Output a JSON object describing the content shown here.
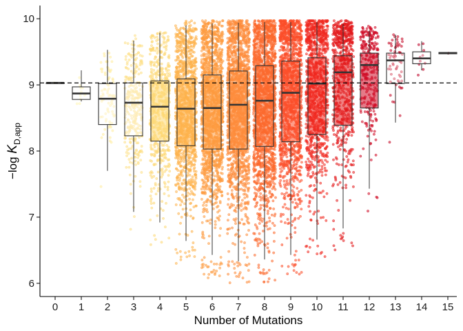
{
  "chart_data": {
    "type": "box",
    "xlabel": "Number of Mutations",
    "ylabel": {
      "prefix": "−log ",
      "symbol": "K",
      "subscript": "D,app"
    },
    "x_categories": [
      "0",
      "1",
      "2",
      "3",
      "4",
      "5",
      "6",
      "7",
      "8",
      "9",
      "10",
      "11",
      "12",
      "13",
      "14",
      "15"
    ],
    "y_ticks": [
      "6",
      "7",
      "8",
      "9",
      "10"
    ],
    "ylim": [
      5.8,
      10.2
    ],
    "reference_line": {
      "y": 9.03,
      "style": "dashed"
    },
    "grid": false,
    "legend": "none",
    "boxes": [
      {
        "x": 0,
        "min": 9.02,
        "q1": 9.02,
        "median": 9.03,
        "q3": 9.03,
        "max": 9.04,
        "color": "#ffffcc",
        "n": 1,
        "spread": 0.0
      },
      {
        "x": 1,
        "min": 8.75,
        "q1": 8.78,
        "median": 8.87,
        "q3": 8.97,
        "max": 9.22,
        "color": "#fff5b8",
        "n": 12,
        "spread": 0.3
      },
      {
        "x": 2,
        "min": 7.7,
        "q1": 8.4,
        "median": 8.79,
        "q3": 9.02,
        "max": 9.53,
        "color": "#ffeda0",
        "n": 80,
        "spread": 0.55
      },
      {
        "x": 3,
        "min": 7.08,
        "q1": 8.23,
        "median": 8.73,
        "q3": 9.03,
        "max": 9.67,
        "color": "#fee087",
        "n": 300,
        "spread": 0.7
      },
      {
        "x": 4,
        "min": 6.92,
        "q1": 8.15,
        "median": 8.67,
        "q3": 9.06,
        "max": 9.79,
        "color": "#fed976",
        "n": 600,
        "spread": 0.8
      },
      {
        "x": 5,
        "min": 6.64,
        "q1": 8.08,
        "median": 8.64,
        "q3": 9.09,
        "max": 9.9,
        "color": "#feb24c",
        "n": 1200,
        "spread": 0.85
      },
      {
        "x": 6,
        "min": 6.43,
        "q1": 8.03,
        "median": 8.65,
        "q3": 9.15,
        "max": 9.93,
        "color": "#fd9b40",
        "n": 1600,
        "spread": 0.88
      },
      {
        "x": 7,
        "min": 6.33,
        "q1": 8.03,
        "median": 8.7,
        "q3": 9.21,
        "max": 9.94,
        "color": "#fd8d3c",
        "n": 1800,
        "spread": 0.9
      },
      {
        "x": 8,
        "min": 6.36,
        "q1": 8.07,
        "median": 8.76,
        "q3": 9.29,
        "max": 9.95,
        "color": "#fc6a2e",
        "n": 1800,
        "spread": 0.9
      },
      {
        "x": 9,
        "min": 6.43,
        "q1": 8.14,
        "median": 8.88,
        "q3": 9.36,
        "max": 9.95,
        "color": "#fc4e2a",
        "n": 1500,
        "spread": 0.9
      },
      {
        "x": 10,
        "min": 6.66,
        "q1": 8.25,
        "median": 9.02,
        "q3": 9.41,
        "max": 9.95,
        "color": "#f0281f",
        "n": 1100,
        "spread": 0.9
      },
      {
        "x": 11,
        "min": 6.83,
        "q1": 8.39,
        "median": 9.19,
        "q3": 9.44,
        "max": 9.92,
        "color": "#e31a1c",
        "n": 700,
        "spread": 0.85
      },
      {
        "x": 12,
        "min": 7.43,
        "q1": 8.65,
        "median": 9.3,
        "q3": 9.48,
        "max": 9.82,
        "color": "#d00c26",
        "n": 300,
        "spread": 0.7
      },
      {
        "x": 13,
        "min": 8.43,
        "q1": 9.02,
        "median": 9.37,
        "q3": 9.48,
        "max": 9.76,
        "color": "#c50a26",
        "n": 60,
        "spread": 0.55
      },
      {
        "x": 14,
        "min": 9.22,
        "q1": 9.32,
        "median": 9.4,
        "q3": 9.5,
        "max": 9.66,
        "color": "#bd0026",
        "n": 10,
        "spread": 0.35
      },
      {
        "x": 15,
        "min": 9.46,
        "q1": 9.47,
        "median": 9.48,
        "q3": 9.49,
        "max": 9.49,
        "color": "#b00026",
        "n": 1,
        "spread": 0.0
      }
    ]
  }
}
